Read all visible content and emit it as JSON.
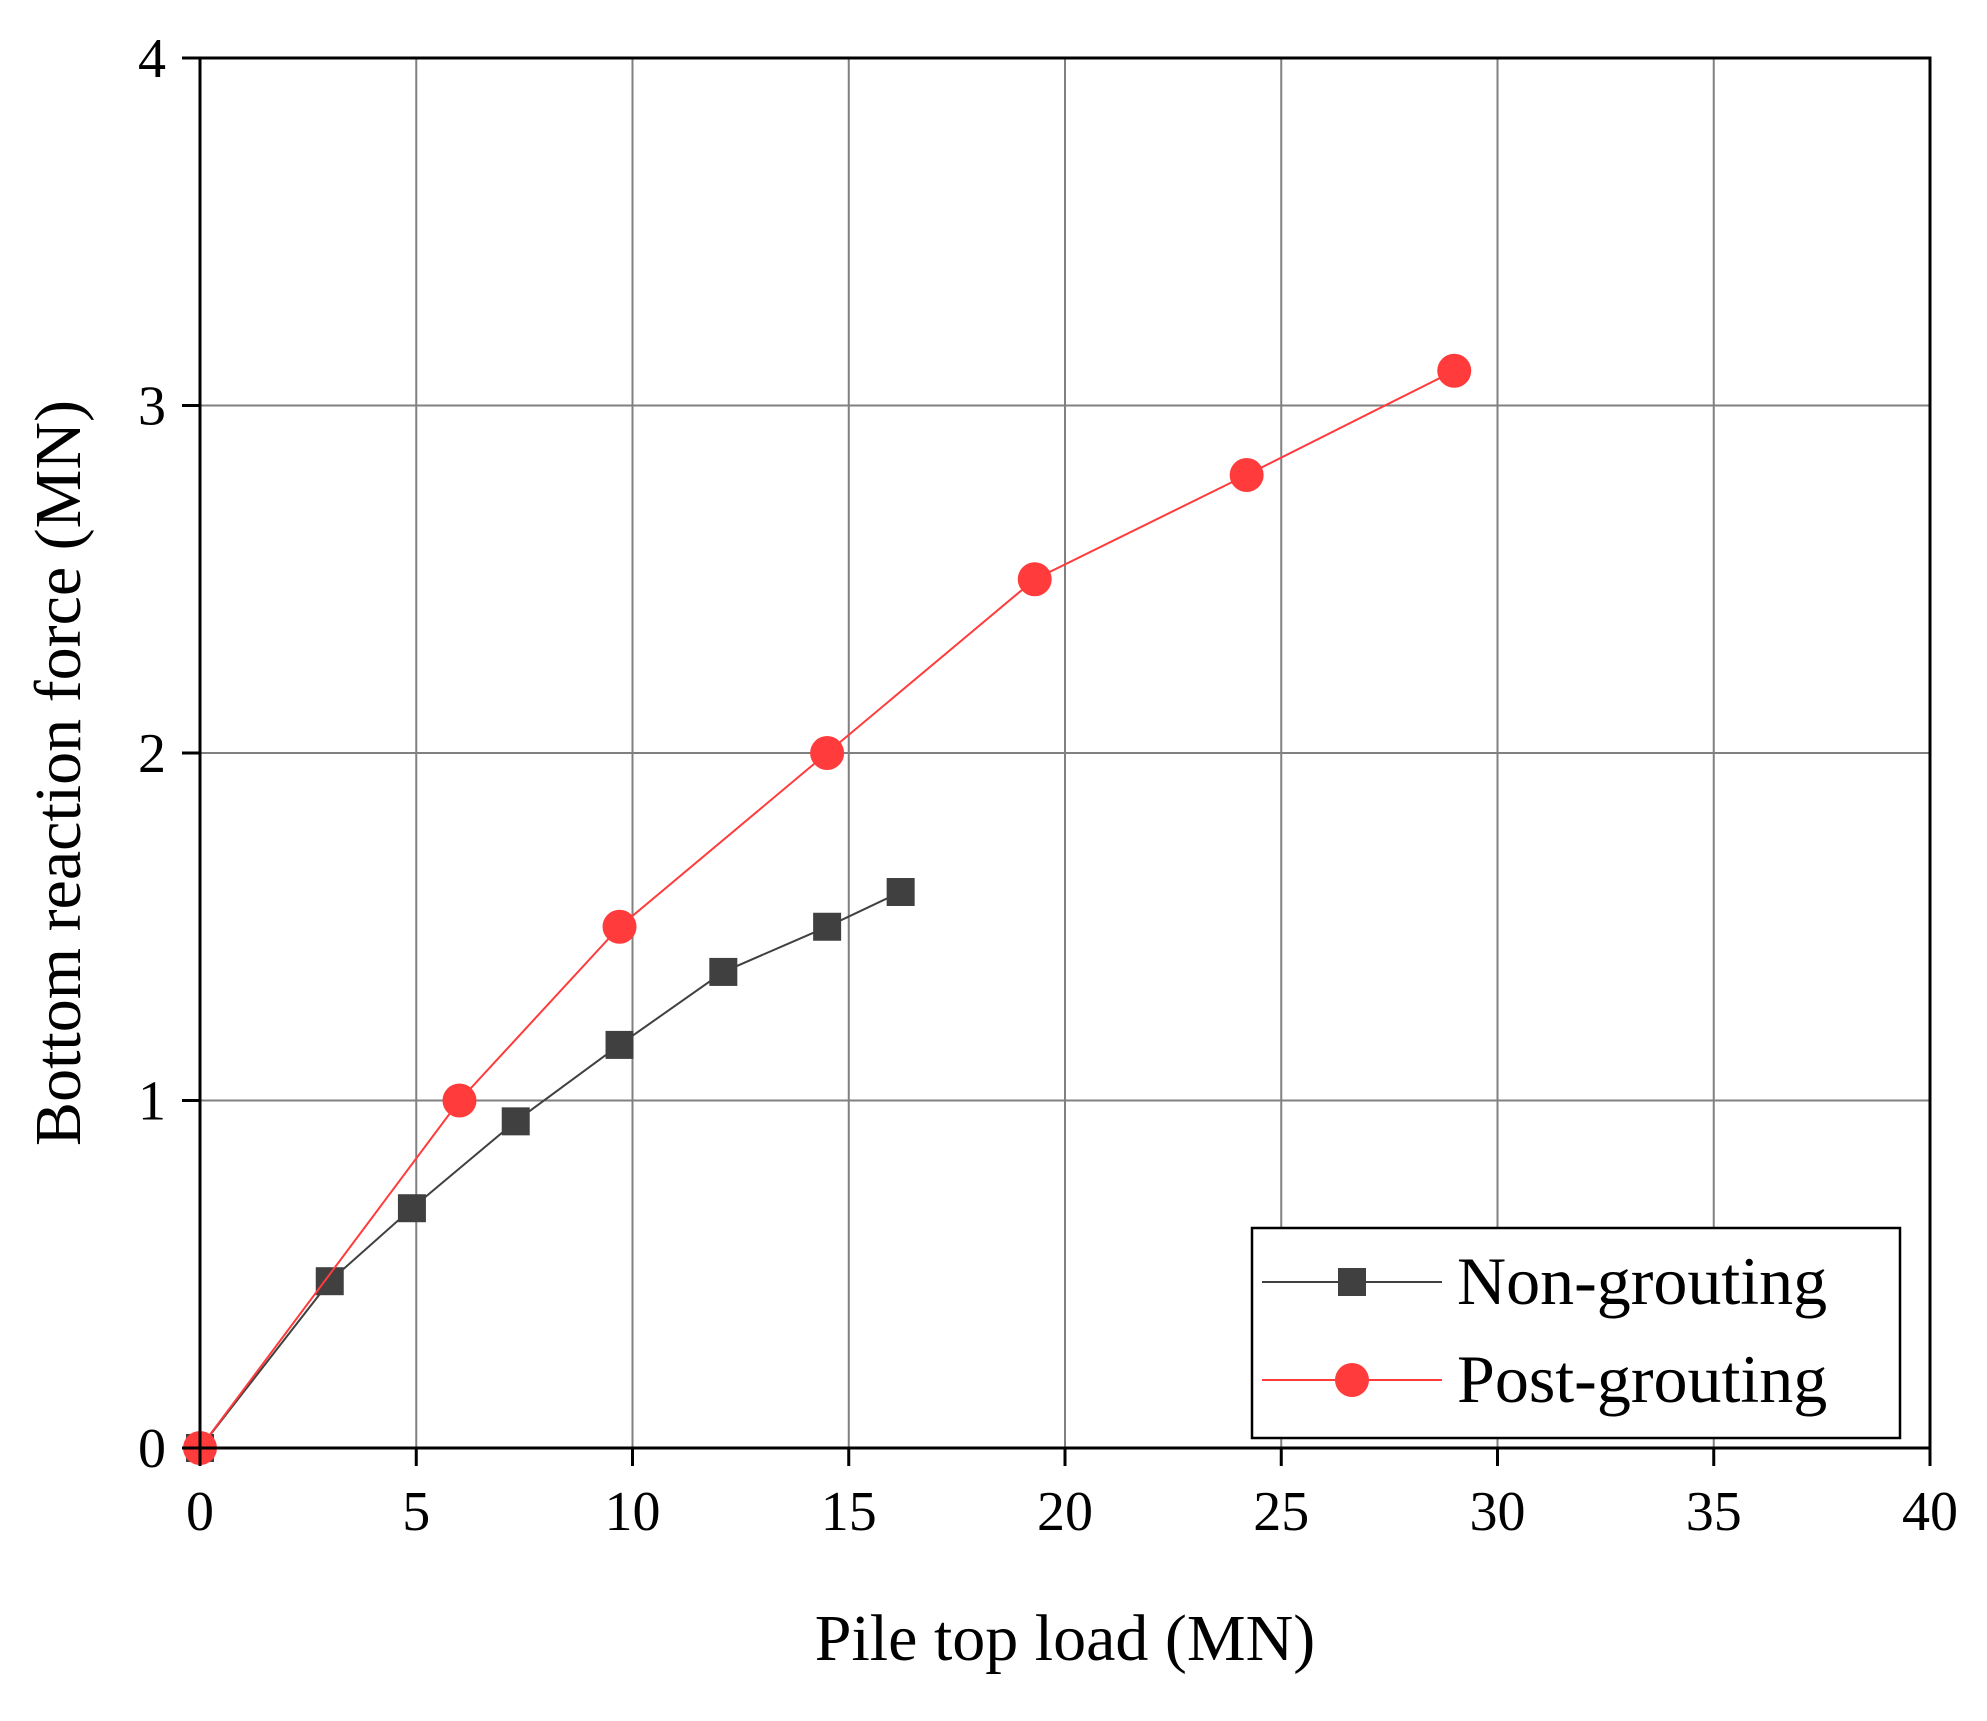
{
  "chart_data": {
    "type": "line",
    "title": "",
    "xlabel": "Pile top load (MN)",
    "ylabel": "Bottom reaction force (MN)",
    "xlim": [
      0,
      40
    ],
    "ylim": [
      0,
      4
    ],
    "xticks": [
      "0",
      "5",
      "10",
      "15",
      "20",
      "25",
      "30",
      "35",
      "40"
    ],
    "yticks": [
      "0",
      "1",
      "2",
      "3",
      "4"
    ],
    "grid": true,
    "legend_position": "bottom-right",
    "series": [
      {
        "name": "Non-grouting",
        "color": "#404040",
        "marker": "square",
        "x": [
          0,
          3.0,
          4.9,
          7.3,
          9.7,
          12.1,
          14.5,
          16.2
        ],
        "y": [
          0,
          0.48,
          0.69,
          0.94,
          1.16,
          1.37,
          1.5,
          1.6
        ]
      },
      {
        "name": "Post-grouting",
        "color": "#ff3b3b",
        "marker": "circle",
        "x": [
          0,
          6.0,
          9.7,
          14.5,
          19.3,
          24.2,
          29.0
        ],
        "y": [
          0,
          1.0,
          1.5,
          2.0,
          2.5,
          2.8,
          3.1
        ]
      }
    ]
  }
}
